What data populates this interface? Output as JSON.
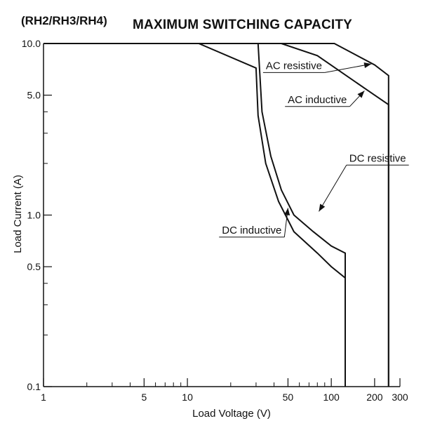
{
  "header": {
    "model_label": "(RH2/RH3/RH4)",
    "title": "MAXIMUM SWITCHING CAPACITY"
  },
  "chart_data": {
    "type": "line",
    "title": "MAXIMUM SWITCHING CAPACITY",
    "xlabel": "Load Voltage (V)",
    "ylabel": "Load Current (A)",
    "x_scale": "log",
    "y_scale": "log",
    "xlim": [
      1,
      300
    ],
    "ylim": [
      0.1,
      10
    ],
    "grid": false,
    "x_ticks": [
      {
        "value": 1,
        "label": "1"
      },
      {
        "value": 5,
        "label": "5"
      },
      {
        "value": 10,
        "label": "10"
      },
      {
        "value": 50,
        "label": "50"
      },
      {
        "value": 100,
        "label": "100"
      },
      {
        "value": 200,
        "label": "200"
      },
      {
        "value": 300,
        "label": "300"
      }
    ],
    "x_minor_ticks": [
      2,
      3,
      4,
      6,
      7,
      8,
      9,
      20,
      30,
      40,
      60,
      70,
      80,
      90
    ],
    "y_ticks": [
      {
        "value": 0.1,
        "label": "0.1"
      },
      {
        "value": 0.5,
        "label": "0.5"
      },
      {
        "value": 1,
        "label": "1.0"
      },
      {
        "value": 5,
        "label": "5.0"
      },
      {
        "value": 10,
        "label": "10.0"
      }
    ],
    "y_minor_ticks": [
      0.2,
      0.3,
      0.4,
      2,
      3,
      4
    ],
    "series": [
      {
        "name": "AC resistive",
        "points": [
          [
            1,
            10
          ],
          [
            60,
            10
          ],
          [
            105,
            10
          ],
          [
            200,
            7.5
          ],
          [
            250,
            6.5
          ],
          [
            250,
            0.1
          ]
        ]
      },
      {
        "name": "AC inductive",
        "points": [
          [
            1,
            10
          ],
          [
            45,
            10
          ],
          [
            80,
            8.5
          ],
          [
            200,
            5
          ],
          [
            250,
            4.4
          ],
          [
            250,
            0.1
          ]
        ]
      },
      {
        "name": "DC resistive",
        "points": [
          [
            1,
            10
          ],
          [
            31,
            10
          ],
          [
            33,
            4
          ],
          [
            38,
            2.2
          ],
          [
            45,
            1.4
          ],
          [
            55,
            1.0
          ],
          [
            75,
            0.8
          ],
          [
            100,
            0.66
          ],
          [
            125,
            0.6
          ],
          [
            125,
            0.1
          ]
        ]
      },
      {
        "name": "DC inductive",
        "points": [
          [
            1,
            10
          ],
          [
            12,
            10
          ],
          [
            30,
            7.2
          ],
          [
            31,
            3.8
          ],
          [
            35,
            2
          ],
          [
            43,
            1.2
          ],
          [
            55,
            0.8
          ],
          [
            80,
            0.6
          ],
          [
            100,
            0.5
          ],
          [
            125,
            0.43
          ],
          [
            125,
            0.1
          ]
        ]
      }
    ],
    "annotations": [
      {
        "text": "AC resistive",
        "series": "AC resistive",
        "target": [
          190,
          7.6
        ],
        "text_at": [
          55,
          7.1
        ]
      },
      {
        "text": "AC inductive",
        "series": "AC inductive",
        "target": [
          170,
          5.3
        ],
        "text_at": [
          80,
          4.5
        ]
      },
      {
        "text": "DC resistive",
        "series": "DC resistive",
        "target": [
          82,
          1.05
        ],
        "text_at": [
          210,
          2.05
        ]
      },
      {
        "text": "DC inductive",
        "series": "DC inductive",
        "target": [
          50,
          1.1
        ],
        "text_at": [
          28,
          0.78
        ]
      }
    ]
  }
}
